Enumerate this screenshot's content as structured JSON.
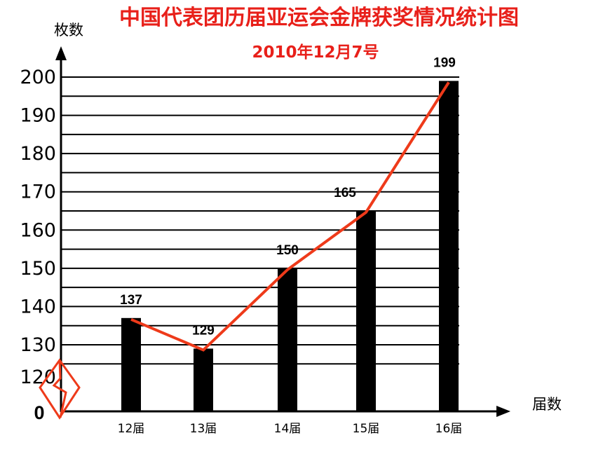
{
  "chart_data": {
    "type": "bar",
    "title": "中国代表团历届亚运会金牌获奖情况统计图",
    "subtitle": "2010年12月7号",
    "ylabel": "枚数",
    "xlabel": "届数",
    "origin_label": "0",
    "categories": [
      "12届",
      "13届",
      "14届",
      "15届",
      "16届"
    ],
    "values": [
      137,
      129,
      150,
      165,
      199
    ],
    "y_tick_labels": [
      "120",
      "130",
      "140",
      "150",
      "160",
      "170",
      "180",
      "190",
      "200"
    ],
    "ylim": [
      120,
      200
    ],
    "axis_break": true,
    "overlay": "line",
    "grid": true,
    "colors": {
      "bar": "#000000",
      "line": "#ee3a1a",
      "title": "#e8201a",
      "axis_break": "#ee3a1a"
    }
  }
}
